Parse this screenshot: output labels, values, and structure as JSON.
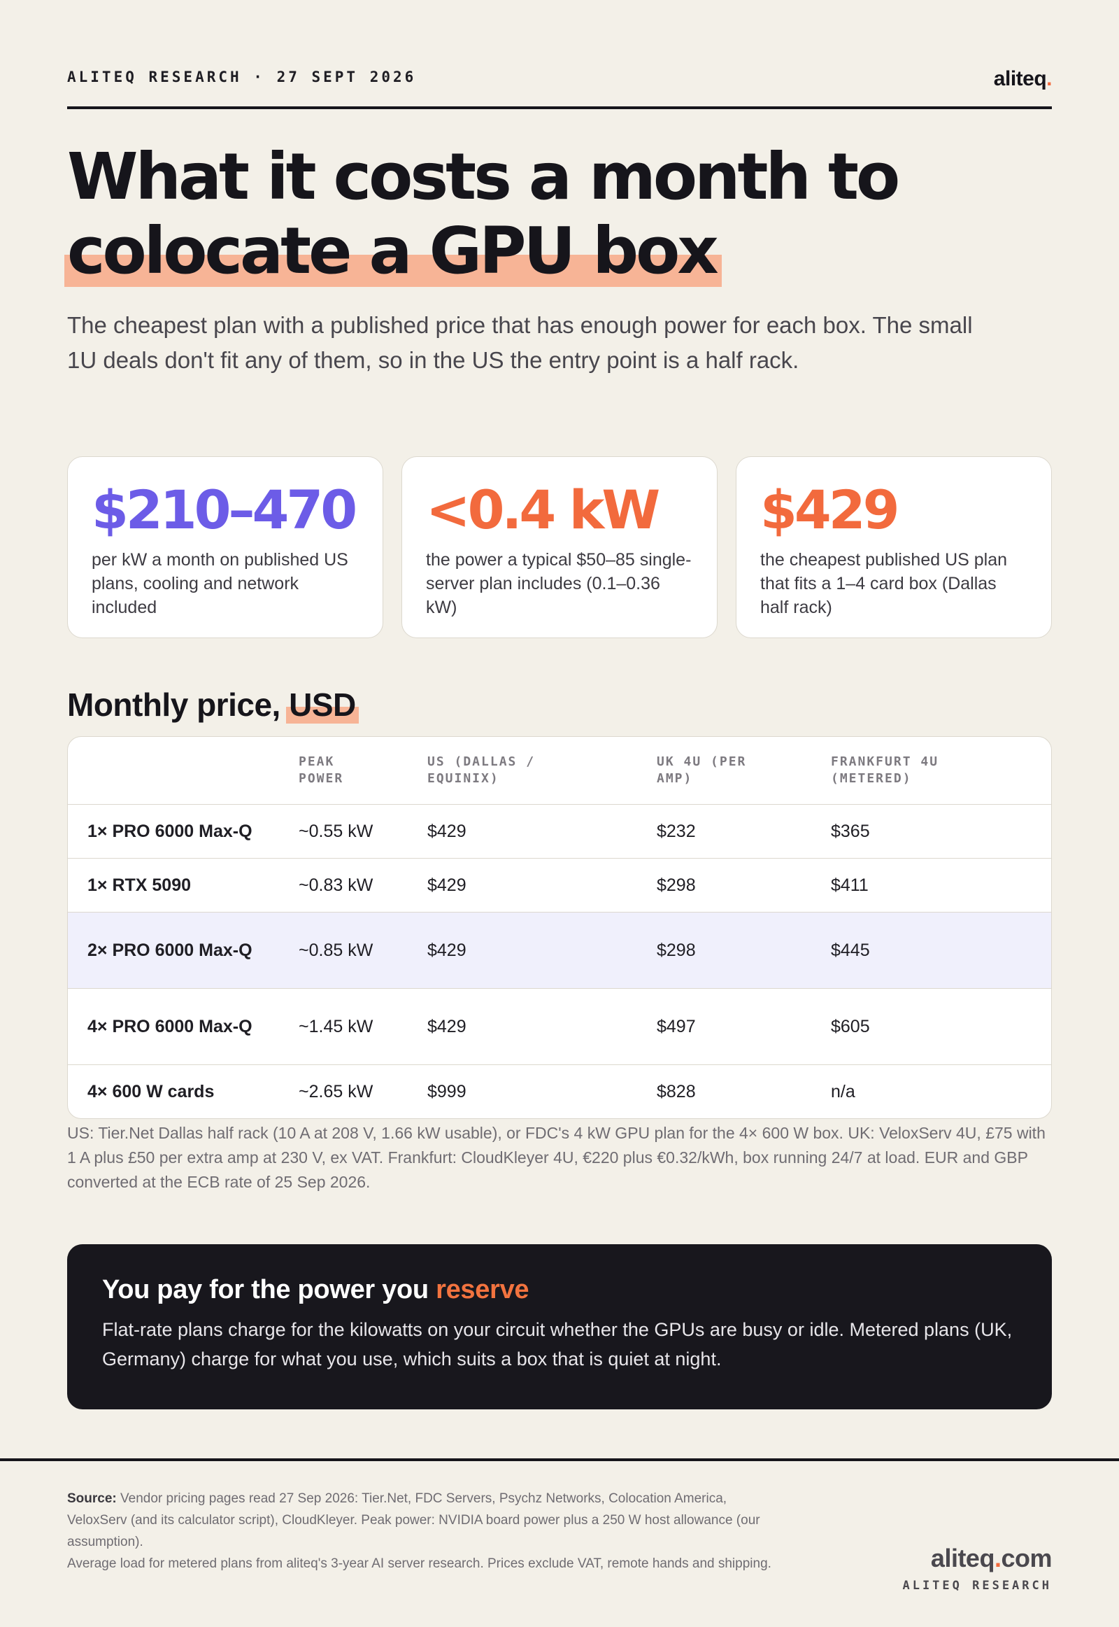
{
  "header": {
    "eyebrow": "ALITEQ RESEARCH · 27 SEPT 2026",
    "logo_text": "aliteq",
    "logo_dot": "."
  },
  "title": {
    "line1": "What it costs a month to",
    "line2": "colocate a GPU box"
  },
  "subtitle": "The cheapest plan with a published price that has enough power for each box. The small 1U deals don't fit any of them, so in the US the entry point is a half rack.",
  "stats": [
    {
      "value": "$210–470",
      "caption": "per kW a month on published US plans, cooling and network included",
      "color": "#6c5ce7"
    },
    {
      "value": "<0.4 kW",
      "caption": "the power a typical $50–85 single-server plan includes (0.1–0.36 kW)",
      "color": "#f26a3d"
    },
    {
      "value": "$429",
      "caption": "the cheapest published US plan that fits a 1–4 card box (Dallas half rack)",
      "color": "#f26a3d"
    }
  ],
  "table_section": {
    "title_main": "Monthly price,",
    "title_highlight": "USD"
  },
  "table": {
    "headers": [
      "",
      "PEAK POWER",
      "US (DALLAS / EQUINIX)",
      "UK 4U (PER AMP)",
      "FRANKFURT 4U (METERED)"
    ],
    "rows": [
      [
        "1× PRO 6000 Max-Q",
        "~0.55 kW",
        "$429",
        "$232",
        "$365"
      ],
      [
        "1× RTX 5090",
        "~0.83 kW",
        "$429",
        "$298",
        "$411"
      ],
      [
        "2× PRO 6000 Max-Q",
        "~0.85 kW",
        "$429",
        "$298",
        "$445"
      ],
      [
        "4× PRO 6000 Max-Q",
        "~1.45 kW",
        "$429",
        "$497",
        "$605"
      ],
      [
        "4× 600 W cards",
        "~2.65 kW",
        "$999",
        "$828",
        "n/a"
      ]
    ],
    "highlighted_row": 2
  },
  "footnote": "US: Tier.Net Dallas half rack (10 A at 208 V, 1.66 kW usable), or FDC's 4 kW GPU plan for the 4× 600 W box. UK: VeloxServ 4U, £75 with 1 A plus £50 per extra amp at 230 V, ex VAT. Frankfurt: CloudKleyer 4U, €220 plus €0.32/kWh, box running 24/7 at load. EUR and GBP converted at the ECB rate of 25 Sep 2026.",
  "callout": {
    "title_main": "You pay for the power you",
    "title_accent": "reserve",
    "body": "Flat-rate plans charge for the kilowatts on your circuit whether the GPUs are busy or idle. Metered plans (UK, Germany) charge for what you use, which suits a box that is quiet at night."
  },
  "footer": {
    "source_label": "Source:",
    "source_text": "Vendor pricing pages read 27 Sep 2026: Tier.Net, FDC Servers, Psychz Networks, Colocation America, VeloxServ (and its calculator script), CloudKleyer. Peak power: NVIDIA board power plus a 250 W host allowance (our assumption).",
    "source_text2": "Average load for metered plans from aliteq's 3-year AI server research. Prices exclude VAT, remote hands and shipping.",
    "brand_name": "aliteq",
    "brand_dot": ".",
    "brand_tld": "com",
    "brand_tagline": "ALITEQ RESEARCH"
  }
}
